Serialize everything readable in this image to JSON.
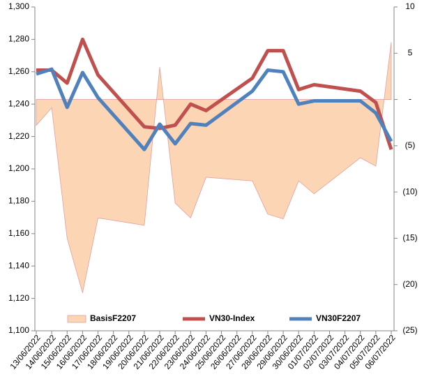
{
  "chart_data": {
    "type": "line",
    "categories": [
      "13/06/2022",
      "14/06/2022",
      "15/06/2022",
      "16/06/2022",
      "17/06/2022",
      "18/06/2022",
      "19/06/2022",
      "20/06/2022",
      "21/06/2022",
      "22/06/2022",
      "23/06/2022",
      "24/06/2022",
      "25/06/2022",
      "26/06/2022",
      "27/06/2022",
      "28/06/2022",
      "29/06/2022",
      "30/06/2022",
      "01/07/2022",
      "02/07/2022",
      "03/07/2022",
      "04/07/2022",
      "05/07/2022",
      "06/07/2022"
    ],
    "x": [
      "13/06/2022",
      "14/06/2022",
      "15/06/2022",
      "16/06/2022",
      "17/06/2022",
      "20/06/2022",
      "21/06/2022",
      "22/06/2022",
      "23/06/2022",
      "24/06/2022",
      "27/06/2022",
      "28/06/2022",
      "29/06/2022",
      "30/06/2022",
      "01/07/2022",
      "04/07/2022",
      "05/07/2022",
      "06/07/2022"
    ],
    "series": [
      {
        "name": "BasisF2207",
        "type": "area",
        "axis": "y2",
        "color": "#fcd5b5",
        "values": [
          -2.8,
          -0.9,
          -15,
          -20.9,
          -12.8,
          -13.6,
          3.5,
          -11.2,
          -12.8,
          -8.4,
          -8.8,
          -12.4,
          -12.9,
          -8.8,
          -10.2,
          -6.3,
          -7.2,
          6.2
        ]
      },
      {
        "name": "VN30-Index",
        "type": "line",
        "color": "#c0504d",
        "values": [
          1261,
          1261,
          1253,
          1280,
          1258,
          1226,
          1225,
          1227,
          1240,
          1236,
          1256,
          1273,
          1273,
          1249,
          1252,
          1248,
          1241,
          1212
        ]
      },
      {
        "name": "VN30F2207",
        "type": "line",
        "color": "#4f81bd",
        "values": [
          1258.6,
          1261.6,
          1238,
          1259.5,
          1244,
          1212,
          1227.6,
          1215.5,
          1228,
          1227,
          1248,
          1261,
          1260,
          1240,
          1242,
          1242,
          1234.5,
          1217
        ]
      }
    ],
    "ylim": [
      1100,
      1300
    ],
    "yticks": [
      {
        "value": 1100,
        "label": "1,100"
      },
      {
        "value": 1120,
        "label": "1,120"
      },
      {
        "value": 1140,
        "label": "1,140"
      },
      {
        "value": 1160,
        "label": "1,160"
      },
      {
        "value": 1180,
        "label": "1,180"
      },
      {
        "value": 1200,
        "label": "1,200"
      },
      {
        "value": 1220,
        "label": "1,220"
      },
      {
        "value": 1240,
        "label": "1,240"
      },
      {
        "value": 1260,
        "label": "1,260"
      },
      {
        "value": 1280,
        "label": "1,280"
      },
      {
        "value": 1300,
        "label": "1,300"
      }
    ],
    "y2lim": [
      -25,
      10
    ],
    "y2ticks": [
      {
        "value": -25,
        "label": "(25)"
      },
      {
        "value": -20,
        "label": "(20)"
      },
      {
        "value": -15,
        "label": "(15)"
      },
      {
        "value": -10,
        "label": "(10)"
      },
      {
        "value": -5,
        "label": "(5)"
      },
      {
        "value": 0,
        "label": "-"
      },
      5,
      10
    ],
    "legend": "bottom"
  }
}
